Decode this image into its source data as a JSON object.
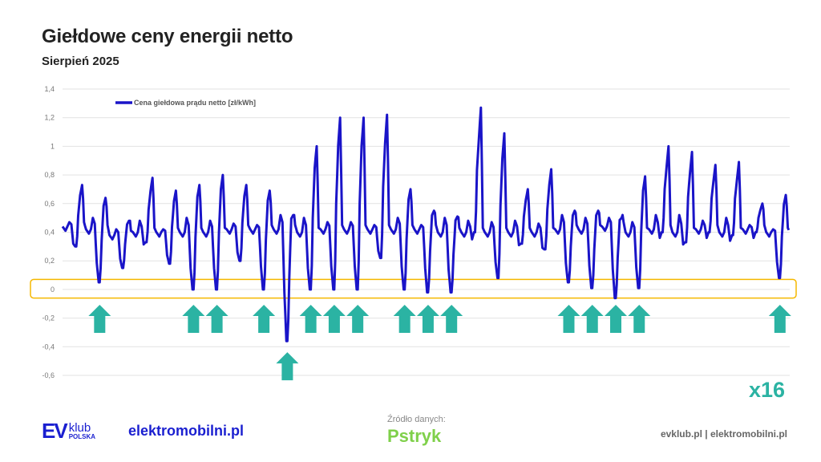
{
  "header": {
    "title": "Giełdowe ceny energii netto",
    "subtitle": "Sierpień 2025"
  },
  "chart_data": {
    "type": "line",
    "title": "Giełdowe ceny energii netto",
    "subtitle": "Sierpień 2025",
    "xlabel": "",
    "ylabel": "",
    "ylim": [
      -0.6,
      1.4
    ],
    "yticks": [
      1.4,
      1.2,
      1,
      0.8,
      0.6,
      0.4,
      0.2,
      0,
      -0.2,
      -0.4,
      -0.6
    ],
    "ytick_labels": [
      "1,4",
      "1,2",
      "1",
      "0,8",
      "0,6",
      "0,4",
      "0,2",
      "0",
      "-0,2",
      "-0,4",
      "-0,6"
    ],
    "grid": true,
    "legend_placement": "top-left",
    "series": [
      {
        "name": "Cena giełdowa prądu netto [zł/kWh]",
        "color": "#1a14c8",
        "days": [
          1,
          2,
          3,
          4,
          5,
          6,
          7,
          8,
          9,
          10,
          11,
          12,
          13,
          14,
          15,
          16,
          17,
          18,
          19,
          20,
          21,
          22,
          23,
          24,
          25,
          26,
          27,
          28,
          29,
          30,
          31
        ],
        "night": [
          0.44,
          0.42,
          0.38,
          0.4,
          0.4,
          0.4,
          0.4,
          0.42,
          0.42,
          0.42,
          0.4,
          0.42,
          0.42,
          0.42,
          0.42,
          0.42,
          0.4,
          0.4,
          0.4,
          0.4,
          0.4,
          0.42,
          0.42,
          0.44,
          0.4,
          0.42,
          0.4,
          0.42,
          0.4,
          0.42,
          0.4
        ],
        "morning_peak": [
          0.47,
          0.5,
          0.42,
          0.48,
          0.42,
          0.5,
          0.48,
          0.46,
          0.45,
          0.52,
          0.5,
          0.47,
          0.47,
          0.45,
          0.5,
          0.45,
          0.5,
          0.48,
          0.47,
          0.48,
          0.46,
          0.52,
          0.5,
          0.5,
          0.47,
          0.52,
          0.52,
          0.48,
          0.5,
          0.45,
          0.42
        ],
        "midday_min": [
          0.3,
          0.05,
          0.15,
          0.33,
          0.18,
          0.0,
          0.0,
          0.2,
          0.0,
          -0.36,
          0.0,
          0.0,
          0.0,
          0.22,
          0.0,
          -0.02,
          -0.02,
          0.4,
          0.08,
          0.32,
          0.28,
          0.05,
          0.01,
          -0.06,
          0.01,
          0.4,
          0.33,
          0.4,
          0.38,
          0.4,
          0.08
        ],
        "evening_peak": [
          0.73,
          0.64,
          0.48,
          0.78,
          0.69,
          0.73,
          0.8,
          0.73,
          0.69,
          0.52,
          1.0,
          1.2,
          1.2,
          1.22,
          0.7,
          0.55,
          0.51,
          1.27,
          1.09,
          0.7,
          0.84,
          0.55,
          0.55,
          0.5,
          0.79,
          1.0,
          0.96,
          0.87,
          0.89,
          0.6,
          0.66
        ]
      }
    ],
    "annotations": {
      "highlight_band": {
        "ymin": -0.06,
        "ymax": 0.07,
        "color": "#f5b800"
      },
      "arrow_color": "#2bb3a3",
      "arrow_days": [
        2,
        6,
        7,
        9,
        10,
        11,
        12,
        13,
        15,
        16,
        17,
        22,
        23,
        24,
        25,
        31
      ],
      "arrow_count_label": "x16"
    }
  },
  "footer": {
    "ev_logo_main": "EV",
    "ev_logo_klub": "klub",
    "ev_logo_polska": "POLSKA",
    "elektromobilni": "elektromobilni.pl",
    "source_label": "Źródło danych:",
    "source_logo": "Pstryk",
    "right_links": "evklub.pl | elektromobilni.pl"
  }
}
